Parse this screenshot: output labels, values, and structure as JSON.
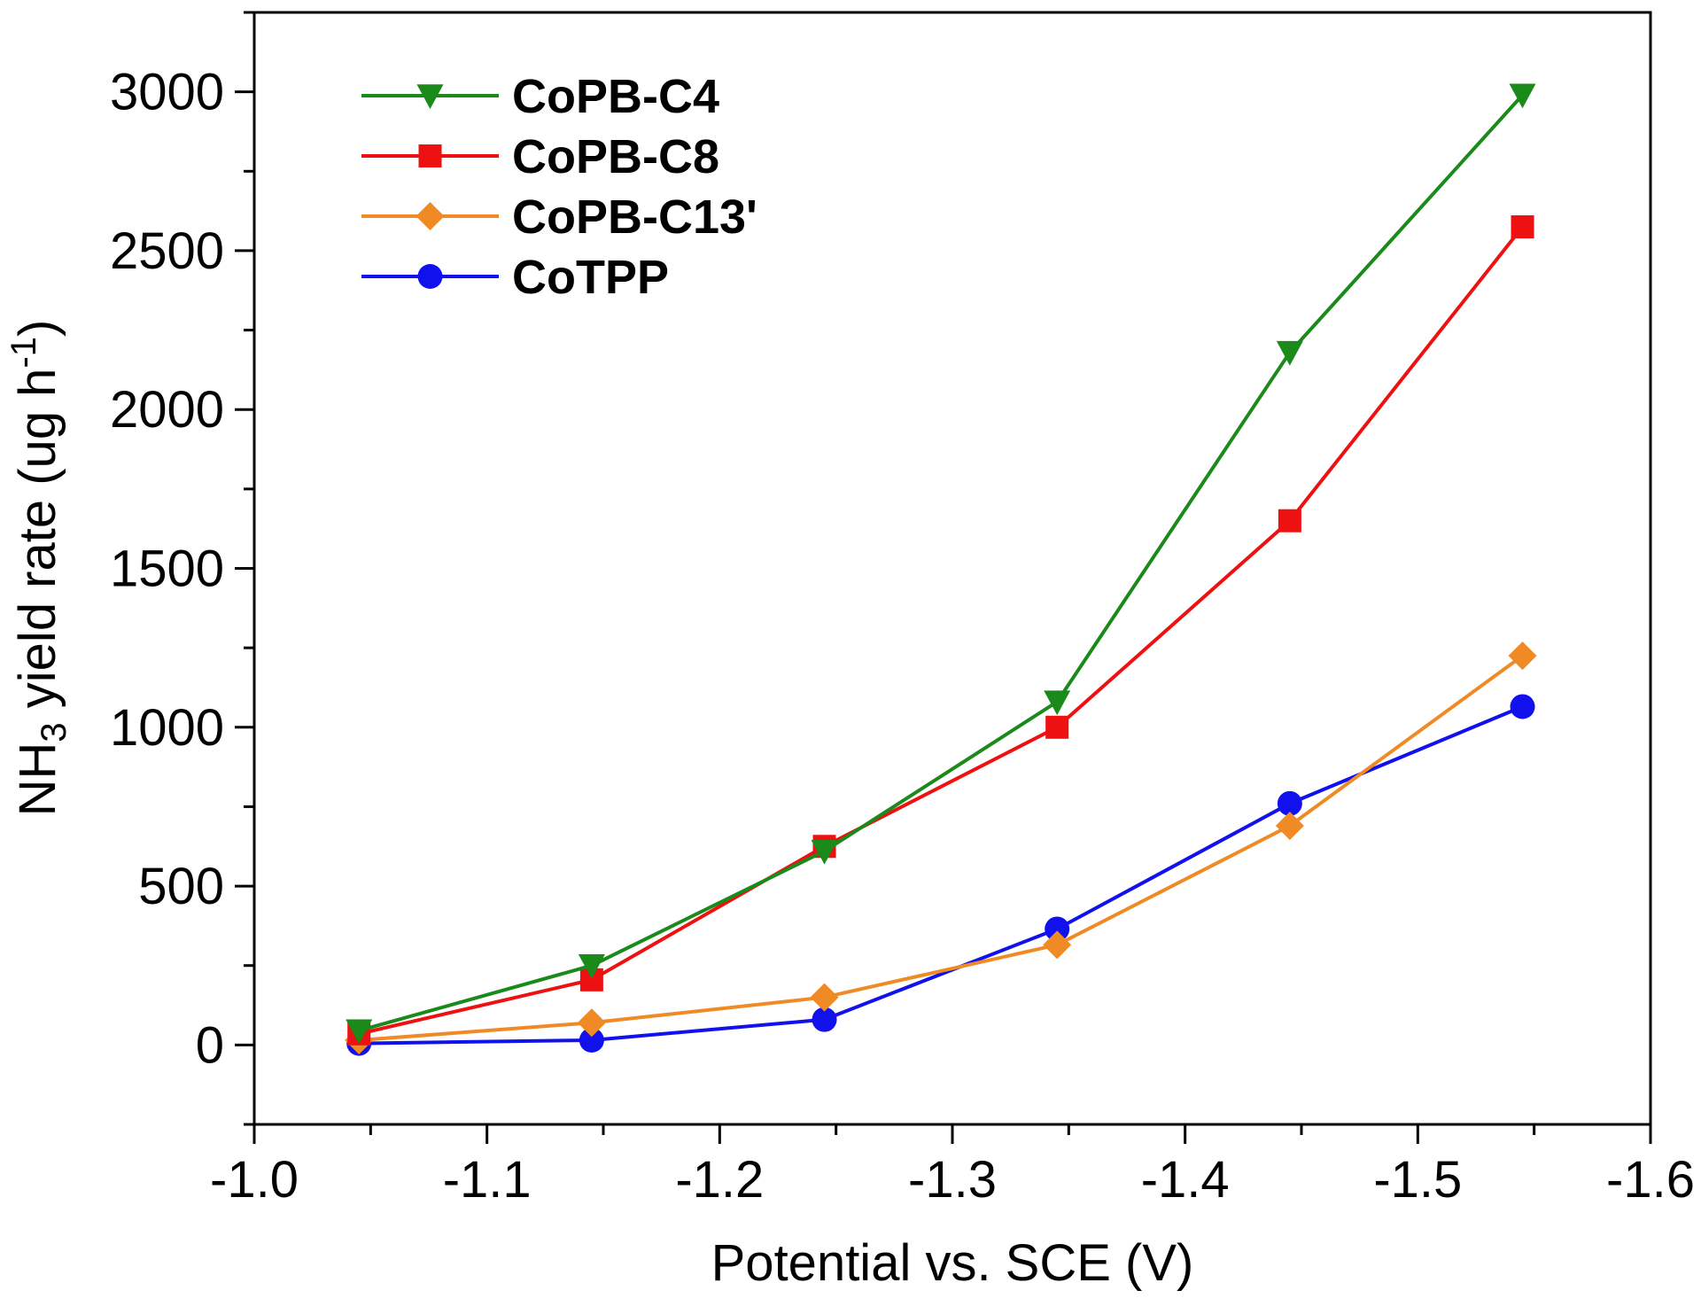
{
  "chart_data": {
    "type": "line",
    "title": "",
    "xlabel": "Potential vs. SCE (V)",
    "ylabel": {
      "prefix": "NH",
      "sub": "3",
      "middle": " yield rate (ug h",
      "sup": "-1",
      "suffix": ")"
    },
    "xlim": [
      -1.0,
      -1.6
    ],
    "ylim": [
      -250,
      3250
    ],
    "x_ticks": [
      -1.0,
      -1.1,
      -1.2,
      -1.3,
      -1.4,
      -1.5,
      -1.6
    ],
    "x_tick_labels": [
      "-1.0",
      "-1.1",
      "-1.2",
      "-1.3",
      "-1.4",
      "-1.5",
      "-1.6"
    ],
    "y_ticks": [
      0,
      500,
      1000,
      1500,
      2000,
      2500,
      3000
    ],
    "y_tick_labels": [
      "0",
      "500",
      "1000",
      "1500",
      "2000",
      "2500",
      "3000"
    ],
    "x": [
      -1.045,
      -1.145,
      -1.245,
      -1.345,
      -1.445,
      -1.545
    ],
    "legend_position": "top-left",
    "series": [
      {
        "name": "CoPB-C4",
        "color": "#1a8a1a",
        "marker": "triangle-down",
        "values": [
          45,
          250,
          610,
          1080,
          2180,
          2990
        ]
      },
      {
        "name": "CoPB-C8",
        "color": "#ee1111",
        "marker": "square",
        "values": [
          35,
          205,
          625,
          1000,
          1650,
          2575
        ]
      },
      {
        "name": "CoPB-C13'",
        "color": "#f08a24",
        "marker": "diamond",
        "values": [
          15,
          70,
          150,
          315,
          690,
          1225
        ]
      },
      {
        "name": "CoTPP",
        "color": "#1111ee",
        "marker": "circle",
        "values": [
          5,
          15,
          80,
          365,
          760,
          1065
        ]
      }
    ]
  }
}
